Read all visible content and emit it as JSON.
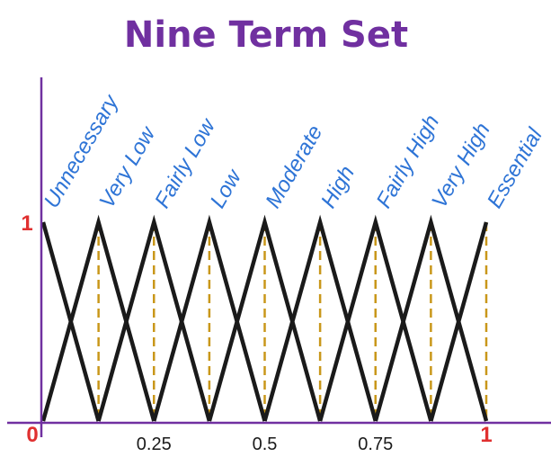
{
  "chart_data": {
    "type": "line",
    "title": "Nine Term Set",
    "terms": [
      {
        "name": "Unnecessary",
        "points": [
          [
            0,
            1
          ],
          [
            0.125,
            0
          ]
        ]
      },
      {
        "name": "Very Low",
        "points": [
          [
            0,
            0
          ],
          [
            0.125,
            1
          ],
          [
            0.25,
            0
          ]
        ]
      },
      {
        "name": "Fairly Low",
        "points": [
          [
            0.125,
            0
          ],
          [
            0.25,
            1
          ],
          [
            0.375,
            0
          ]
        ]
      },
      {
        "name": "Low",
        "points": [
          [
            0.25,
            0
          ],
          [
            0.375,
            1
          ],
          [
            0.5,
            0
          ]
        ]
      },
      {
        "name": "Moderate",
        "points": [
          [
            0.375,
            0
          ],
          [
            0.5,
            1
          ],
          [
            0.625,
            0
          ]
        ]
      },
      {
        "name": "High",
        "points": [
          [
            0.5,
            0
          ],
          [
            0.625,
            1
          ],
          [
            0.75,
            0
          ]
        ]
      },
      {
        "name": "Fairly High",
        "points": [
          [
            0.625,
            0
          ],
          [
            0.75,
            1
          ],
          [
            0.875,
            0
          ]
        ]
      },
      {
        "name": "Very High",
        "points": [
          [
            0.75,
            0
          ],
          [
            0.875,
            1
          ],
          [
            1,
            0
          ]
        ]
      },
      {
        "name": "Essential",
        "points": [
          [
            0.875,
            0
          ],
          [
            1,
            1
          ]
        ]
      }
    ],
    "peaks": [
      0.125,
      0.25,
      0.375,
      0.5,
      0.625,
      0.75,
      0.875,
      1
    ],
    "x_ticks": [
      {
        "value": 0,
        "label": "0"
      },
      {
        "value": 0.25,
        "label": "0.25"
      },
      {
        "value": 0.5,
        "label": "0.5"
      },
      {
        "value": 0.75,
        "label": "0.75"
      },
      {
        "value": 1,
        "label": "1"
      }
    ],
    "y_ticks": [
      {
        "value": 1,
        "label": "1"
      }
    ],
    "xlim": [
      0,
      1
    ],
    "ylim": [
      0,
      1
    ],
    "grid": false,
    "colors": {
      "title": "#7030A0",
      "axis": "#7030A0",
      "lines": "#1a1a1a",
      "guides": "#C9971A",
      "labels": "#2E74D6",
      "red_ticks": "#E03030",
      "dark_ticks": "#1a1a1a"
    }
  }
}
